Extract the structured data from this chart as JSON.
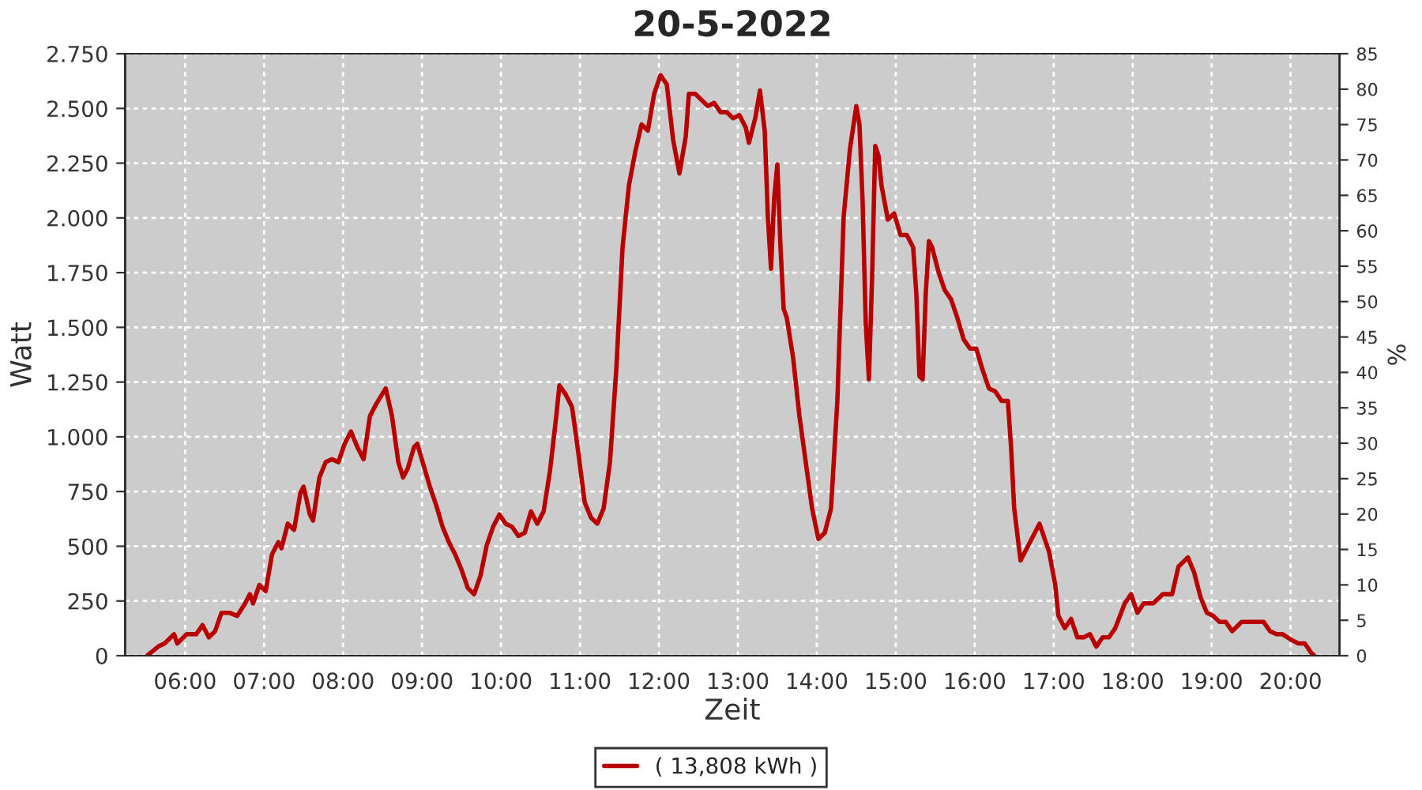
{
  "chart_data": {
    "type": "line",
    "title": "20-5-2022",
    "xlabel": "Zeit",
    "ylabel": "Watt",
    "y2label": "%",
    "xlim": [
      5.24,
      20.62
    ],
    "xticks": [
      {
        "value": 6,
        "label": "06:00"
      },
      {
        "value": 7,
        "label": "07:00"
      },
      {
        "value": 8,
        "label": "08:00"
      },
      {
        "value": 9,
        "label": "09:00"
      },
      {
        "value": 10,
        "label": "10:00"
      },
      {
        "value": 11,
        "label": "11:00"
      },
      {
        "value": 12,
        "label": "12:00"
      },
      {
        "value": 13,
        "label": "13:00"
      },
      {
        "value": 14,
        "label": "14:00"
      },
      {
        "value": 15,
        "label": "15:00"
      },
      {
        "value": 16,
        "label": "16:00"
      },
      {
        "value": 17,
        "label": "17:00"
      },
      {
        "value": 18,
        "label": "18:00"
      },
      {
        "value": 19,
        "label": "19:00"
      },
      {
        "value": 20,
        "label": "20:00"
      }
    ],
    "ylim": [
      0,
      2750
    ],
    "yticks": [
      0,
      250,
      500,
      750,
      {
        "value": 1000,
        "label": "1.000"
      },
      {
        "value": 1250,
        "label": "1.250"
      },
      {
        "value": 1500,
        "label": "1.500"
      },
      {
        "value": 1750,
        "label": "1.750"
      },
      {
        "value": 2000,
        "label": "2.000"
      },
      {
        "value": 2250,
        "label": "2.250"
      },
      {
        "value": 2500,
        "label": "2.500"
      },
      {
        "value": 2750,
        "label": "2.750"
      }
    ],
    "y2lim": [
      0,
      85
    ],
    "y2ticks": [
      0,
      5,
      10,
      15,
      20,
      25,
      30,
      35,
      40,
      45,
      50,
      55,
      60,
      65,
      70,
      75,
      80,
      85
    ],
    "grid": true,
    "legend": "bottom",
    "line_style": "solid",
    "series": [
      {
        "name": "( 13,808 kWh )",
        "color": "#b80000",
        "x": [
          5.52,
          5.66,
          5.74,
          5.86,
          5.9,
          6.02,
          6.14,
          6.22,
          6.3,
          6.38,
          6.46,
          6.56,
          6.66,
          6.76,
          6.82,
          6.86,
          6.94,
          7.02,
          7.1,
          7.18,
          7.22,
          7.3,
          7.38,
          7.46,
          7.5,
          7.58,
          7.62,
          7.7,
          7.78,
          7.86,
          7.94,
          8.02,
          8.1,
          8.18,
          8.26,
          8.34,
          8.42,
          8.54,
          8.62,
          8.7,
          8.76,
          8.82,
          8.9,
          8.94,
          9.02,
          9.1,
          9.18,
          9.26,
          9.34,
          9.42,
          9.5,
          9.58,
          9.66,
          9.74,
          9.82,
          9.9,
          9.98,
          10.06,
          10.14,
          10.22,
          10.3,
          10.38,
          10.46,
          10.54,
          10.62,
          10.7,
          10.74,
          10.82,
          10.9,
          10.98,
          11.06,
          11.14,
          11.22,
          11.3,
          11.38,
          11.46,
          11.54,
          11.62,
          11.7,
          11.78,
          11.86,
          11.94,
          12.02,
          12.1,
          12.18,
          12.26,
          12.34,
          12.38,
          12.46,
          12.54,
          12.62,
          12.7,
          12.78,
          12.86,
          12.94,
          13.02,
          13.1,
          13.14,
          13.22,
          13.28,
          13.34,
          13.38,
          13.42,
          13.46,
          13.5,
          13.54,
          13.58,
          13.62,
          13.7,
          13.78,
          13.86,
          13.94,
          14.02,
          14.1,
          14.18,
          14.26,
          14.34,
          14.42,
          14.5,
          14.54,
          14.58,
          14.62,
          14.66,
          14.7,
          14.74,
          14.78,
          14.82,
          14.9,
          14.98,
          15.06,
          15.14,
          15.22,
          15.26,
          15.3,
          15.34,
          15.38,
          15.42,
          15.46,
          15.54,
          15.62,
          15.7,
          15.78,
          15.86,
          15.94,
          16.02,
          16.1,
          16.18,
          16.26,
          16.34,
          16.42,
          16.46,
          16.5,
          16.58,
          16.66,
          16.74,
          16.82,
          16.86,
          16.94,
          17.02,
          17.06,
          17.14,
          17.22,
          17.3,
          17.38,
          17.46,
          17.54,
          17.62,
          17.7,
          17.78,
          17.9,
          17.98,
          18.06,
          18.14,
          18.26,
          18.38,
          18.5,
          18.58,
          18.66,
          18.7,
          18.78,
          18.86,
          18.94,
          19.02,
          19.1,
          19.18,
          19.26,
          19.38,
          19.54,
          19.66,
          19.74,
          19.82,
          19.9,
          20.02,
          20.1,
          20.18,
          20.26,
          20.3
        ],
        "values": [
          0,
          42,
          56,
          98,
          56,
          98,
          98,
          140,
          84,
          112,
          196,
          196,
          182,
          239,
          281,
          239,
          323,
          295,
          463,
          519,
          491,
          603,
          575,
          744,
          772,
          645,
          617,
          814,
          884,
          898,
          884,
          968,
          1024,
          954,
          898,
          1094,
          1150,
          1221,
          1094,
          884,
          814,
          856,
          954,
          968,
          870,
          772,
          687,
          589,
          519,
          463,
          393,
          309,
          281,
          365,
          505,
          589,
          645,
          603,
          589,
          547,
          561,
          659,
          603,
          659,
          842,
          1094,
          1235,
          1193,
          1136,
          926,
          701,
          631,
          603,
          673,
          884,
          1305,
          1866,
          2147,
          2301,
          2427,
          2399,
          2567,
          2652,
          2610,
          2357,
          2203,
          2371,
          2567,
          2567,
          2539,
          2511,
          2525,
          2483,
          2483,
          2455,
          2469,
          2413,
          2343,
          2455,
          2582,
          2399,
          2006,
          1768,
          2090,
          2245,
          1866,
          1585,
          1543,
          1361,
          1094,
          884,
          673,
          533,
          561,
          673,
          1164,
          2006,
          2315,
          2511,
          2427,
          2076,
          1515,
          1263,
          1726,
          2329,
          2287,
          2147,
          1992,
          2020,
          1922,
          1922,
          1866,
          1656,
          1277,
          1263,
          1656,
          1894,
          1866,
          1754,
          1670,
          1628,
          1543,
          1445,
          1403,
          1403,
          1305,
          1221,
          1207,
          1164,
          1164,
          954,
          673,
          435,
          491,
          547,
          603,
          561,
          477,
          323,
          182,
          126,
          168,
          84,
          84,
          98,
          42,
          84,
          84,
          126,
          239,
          281,
          196,
          239,
          239,
          281,
          281,
          407,
          435,
          449,
          379,
          267,
          196,
          182,
          154,
          154,
          112,
          154,
          154,
          154,
          112,
          98,
          98,
          70,
          56,
          56,
          14,
          0
        ]
      }
    ]
  }
}
